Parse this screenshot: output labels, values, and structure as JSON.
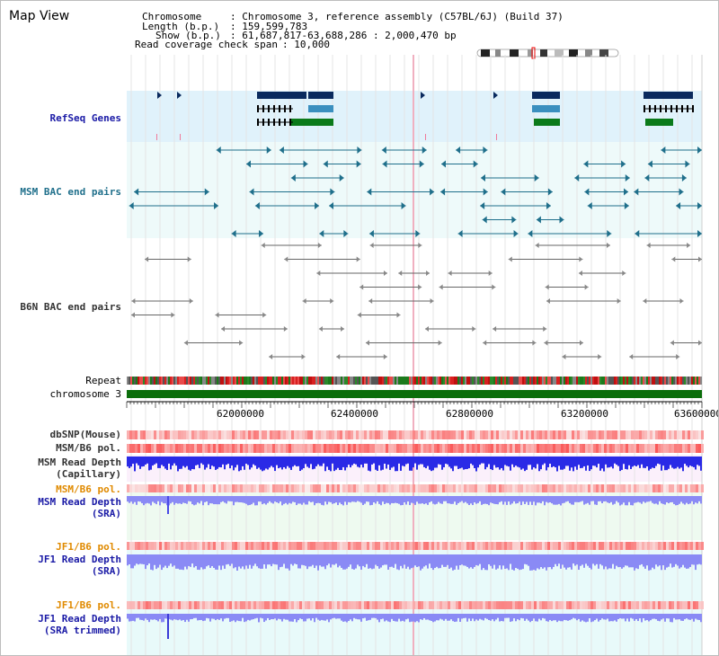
{
  "app": {
    "title": "Map View"
  },
  "header": {
    "chromosome_key": "Chromosome",
    "chromosome_value": ": Chromosome 3, reference assembly (C57BL/6J) (Build 37)",
    "length_key": "Length (b.p.)",
    "length_value": ": 159,599,783",
    "show_key": "Show (b.p.)",
    "show_value": ": 61,687,817-63,688,286 : 2,000,470 bp",
    "coverage_key": "Read coverage check span",
    "coverage_value": ": 10,000"
  },
  "tracks": {
    "refseq": "RefSeq Genes",
    "msm_bac": "MSM BAC end pairs",
    "b6n_bac": "B6N BAC end pairs",
    "repeat": "Repeat",
    "chromosome": "chromosome 3",
    "dbsnp": "dbSNP(Mouse)",
    "msm_b6_pol_1": "MSM/B6 pol.",
    "msm_read_depth_cap_1": "MSM Read Depth",
    "msm_read_depth_cap_2": "(Capillary)",
    "msm_b6_pol_2": "MSM/B6 pol.",
    "msm_read_depth_sra_1": "MSM Read Depth",
    "msm_read_depth_sra_2": "(SRA)",
    "jf1_b6_pol_1": "JF1/B6 pol.",
    "jf1_read_depth_sra_1": "JF1 Read Depth",
    "jf1_read_depth_sra_2": "(SRA)",
    "jf1_b6_pol_2": "JF1/B6 pol.",
    "jf1_read_depth_trim_1": "JF1 Read Depth",
    "jf1_read_depth_trim_2": "(SRA trimmed)"
  },
  "axis": {
    "ticks": [
      "62000000",
      "62400000",
      "62800000",
      "63200000",
      "63600000"
    ]
  },
  "colors": {
    "refseq_bg": "#e0f2fb",
    "bac_bg": "#eefafa",
    "gene_navy": "#0a2a5e",
    "gene_teal": "#3a8fbf",
    "gene_green": "#0b7a1a",
    "chromosome": "#0b6e0b",
    "depth_blue": "#2a2ae6",
    "depth_light": "#8a8af5",
    "highlight_line": "#f0b0c0"
  }
}
